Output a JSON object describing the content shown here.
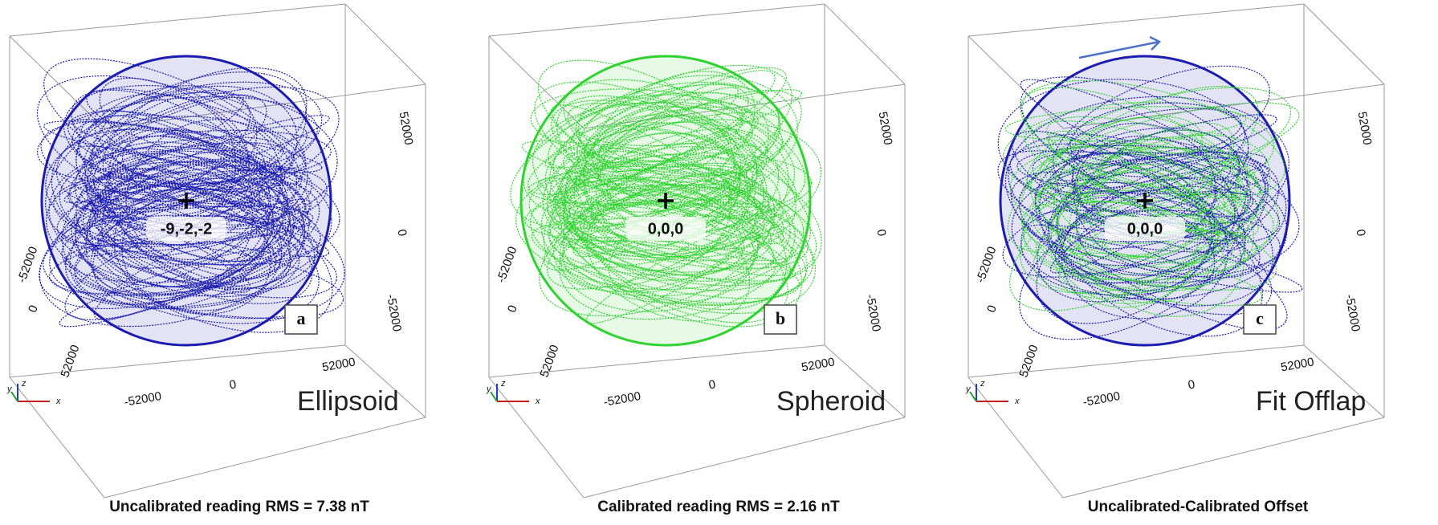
{
  "panels": [
    {
      "letter": "a",
      "name": "Ellipsoid",
      "center": "-9,-2,-2",
      "caption": "Uncalibrated reading RMS = 7.38 nT",
      "left_axis": [
        "-52000",
        "0",
        "52000"
      ],
      "bottom_axis": [
        "-52000",
        "0",
        "52000"
      ],
      "right_axis": [
        "52000",
        "0",
        "-52000"
      ],
      "triad": [
        "x",
        "y",
        "z"
      ]
    },
    {
      "letter": "b",
      "name": "Spheroid",
      "center": "0,0,0",
      "caption": "Calibrated reading RMS =  2.16  nT",
      "left_axis": [
        "-52000",
        "0",
        "52000"
      ],
      "bottom_axis": [
        "-52000",
        "0",
        "52000"
      ],
      "right_axis": [
        "52000",
        "0",
        "-52000"
      ],
      "triad": [
        "x",
        "y",
        "z"
      ]
    },
    {
      "letter": "c",
      "name": "Fit Offlap",
      "center": "0,0,0",
      "caption": "Uncalibrated-Calibrated Offset",
      "left_axis": [
        "-52000",
        "0",
        "52000"
      ],
      "bottom_axis": [
        "-52000",
        "0",
        "52000"
      ],
      "right_axis": [
        "52000",
        "0",
        "-52000"
      ],
      "triad": [
        "x",
        "y",
        "z"
      ]
    }
  ]
}
